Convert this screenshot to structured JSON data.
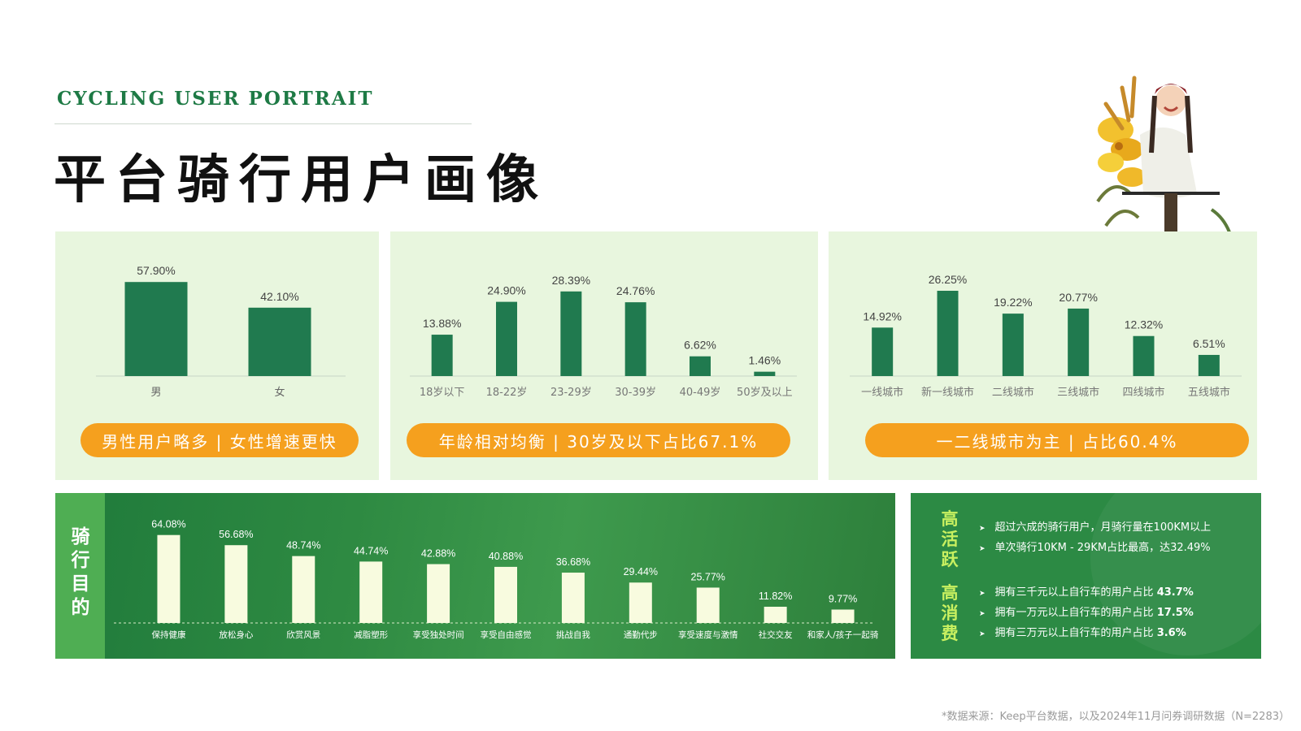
{
  "header": {
    "eyebrow": "CYCLING USER PORTRAIT",
    "title": "平台骑行用户画像"
  },
  "colors": {
    "bar_green": "#207a4f",
    "bar_cream": "#f8fbdf",
    "accent_orange": "#f5a01e",
    "panel_bg": "#e8f6de",
    "highlight_green": "#c8f060"
  },
  "chart_data": [
    {
      "type": "bar",
      "categories": [
        "男",
        "女"
      ],
      "values": [
        57.9,
        42.1
      ],
      "labels": [
        "57.90%",
        "42.10%"
      ],
      "summary": "男性用户略多 | 女性增速更快"
    },
    {
      "type": "bar",
      "categories": [
        "18岁以下",
        "18-22岁",
        "23-29岁",
        "30-39岁",
        "40-49岁",
        "50岁及以上"
      ],
      "values": [
        13.88,
        24.9,
        28.39,
        24.76,
        6.62,
        1.46
      ],
      "labels": [
        "13.88%",
        "24.90%",
        "28.39%",
        "24.76%",
        "6.62%",
        "1.46%"
      ],
      "summary": "年龄相对均衡 | 30岁及以下占比67.1%"
    },
    {
      "type": "bar",
      "categories": [
        "一线城市",
        "新一线城市",
        "二线城市",
        "三线城市",
        "四线城市",
        "五线城市"
      ],
      "values": [
        14.92,
        26.25,
        19.22,
        20.77,
        12.32,
        6.51
      ],
      "labels": [
        "14.92%",
        "26.25%",
        "19.22%",
        "20.77%",
        "12.32%",
        "6.51%"
      ],
      "summary": "一二线城市为主 | 占比60.4%"
    },
    {
      "type": "bar",
      "side_label": "骑行目的",
      "categories": [
        "保持健康",
        "放松身心",
        "欣赏风景",
        "减脂塑形",
        "享受独处时间",
        "享受自由感觉",
        "挑战自我",
        "通勤代步",
        "享受速度与激情",
        "社交交友",
        "和家人/孩子一起骑"
      ],
      "values": [
        64.08,
        56.68,
        48.74,
        44.74,
        42.88,
        40.88,
        36.68,
        29.44,
        25.77,
        11.82,
        9.77
      ],
      "labels": [
        "64.08%",
        "56.68%",
        "48.74%",
        "44.74%",
        "42.88%",
        "40.88%",
        "36.68%",
        "29.44%",
        "25.77%",
        "11.82%",
        "9.77%"
      ]
    }
  ],
  "side_panel": {
    "groups": [
      {
        "heading": "高活跃",
        "items": [
          {
            "text": "超过六成的骑行用户，月骑行量在100KM以上",
            "bold": ""
          },
          {
            "text": "单次骑行10KM - 29KM占比最高，达32.49%",
            "bold": ""
          }
        ]
      },
      {
        "heading": "高消费",
        "items": [
          {
            "text": "拥有三千元以上自行车的用户占比 ",
            "bold": "43.7%"
          },
          {
            "text": "拥有一万元以上自行车的用户占比 ",
            "bold": "17.5%"
          },
          {
            "text": "拥有三万元以上自行车的用户占比 ",
            "bold": "3.6%"
          }
        ]
      }
    ],
    "bullet": "➤"
  },
  "footnote": "*数据来源：Keep平台数据，以及2024年11月问券调研数据（N=2283）"
}
